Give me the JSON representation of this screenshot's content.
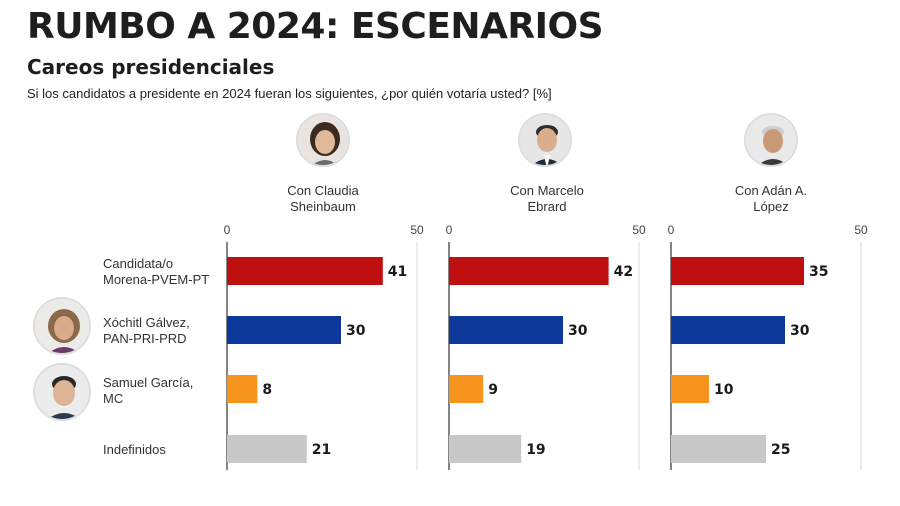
{
  "header": {
    "title": "RUMBO A 2024: ESCENARIOS",
    "subtitle": "Careos presidenciales",
    "question": "Si los candidatos a presidente en 2024 fueran los siguientes, ¿por quién votaría usted?  [%]"
  },
  "panels": [
    {
      "line1": "Con Claudia",
      "line2": "Sheinbaum"
    },
    {
      "line1": "Con Marcelo",
      "line2": "Ebrard"
    },
    {
      "line1": "Con Adán A.",
      "line2": "López"
    }
  ],
  "rows": [
    {
      "line1": "Candidata/o",
      "line2": "Morena-PVEM-PT"
    },
    {
      "line1": "Xóchitl Gálvez,",
      "line2": "PAN-PRI-PRD"
    },
    {
      "line1": "Samuel García,",
      "line2": "MC"
    },
    {
      "line1": "Indefinidos",
      "line2": ""
    }
  ],
  "chart_data": {
    "type": "bar",
    "orientation": "horizontal",
    "unit": "%",
    "xlim": [
      0,
      50
    ],
    "ticks": [
      0,
      50
    ],
    "categories": [
      "Candidata/o Morena-PVEM-PT",
      "Xóchitl Gálvez, PAN-PRI-PRD",
      "Samuel García, MC",
      "Indefinidos"
    ],
    "category_colors": [
      "#c00f0f",
      "#0d3a9a",
      "#f7941d",
      "#c8c8c8"
    ],
    "panels": [
      {
        "name": "Con Claudia Sheinbaum",
        "values": [
          41,
          30,
          8,
          21
        ]
      },
      {
        "name": "Con Marcelo Ebrard",
        "values": [
          42,
          30,
          9,
          19
        ]
      },
      {
        "name": "Con Adán A. López",
        "values": [
          35,
          30,
          10,
          25
        ]
      }
    ]
  }
}
